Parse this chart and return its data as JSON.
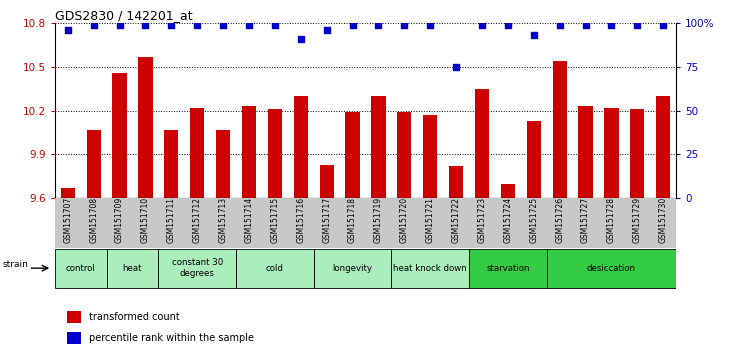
{
  "title": "GDS2830 / 142201_at",
  "samples": [
    "GSM151707",
    "GSM151708",
    "GSM151709",
    "GSM151710",
    "GSM151711",
    "GSM151712",
    "GSM151713",
    "GSM151714",
    "GSM151715",
    "GSM151716",
    "GSM151717",
    "GSM151718",
    "GSM151719",
    "GSM151720",
    "GSM151721",
    "GSM151722",
    "GSM151723",
    "GSM151724",
    "GSM151725",
    "GSM151726",
    "GSM151727",
    "GSM151728",
    "GSM151729",
    "GSM151730"
  ],
  "bar_values": [
    9.67,
    10.07,
    10.46,
    10.57,
    10.07,
    10.22,
    10.07,
    10.23,
    10.21,
    10.3,
    9.83,
    10.19,
    10.3,
    10.19,
    10.17,
    9.82,
    10.35,
    9.7,
    10.13,
    10.54,
    10.23,
    10.22,
    10.21,
    10.3
  ],
  "percentile_values": [
    96,
    99,
    99,
    99,
    99,
    99,
    99,
    99,
    99,
    91,
    96,
    99,
    99,
    99,
    99,
    75,
    99,
    99,
    93,
    99,
    99,
    99,
    99,
    99
  ],
  "bar_color": "#CC0000",
  "dot_color": "#0000CC",
  "ylim_left": [
    9.6,
    10.8
  ],
  "yticks_left": [
    9.6,
    9.9,
    10.2,
    10.5,
    10.8
  ],
  "ylim_right": [
    0,
    100
  ],
  "yticks_right": [
    0,
    25,
    50,
    75,
    100
  ],
  "yticklabels_right": [
    "0",
    "25",
    "50",
    "75",
    "100%"
  ],
  "groups": [
    {
      "label": "control",
      "start": 0,
      "end": 2,
      "color": "#AAEEBB"
    },
    {
      "label": "heat",
      "start": 2,
      "end": 4,
      "color": "#AAEEBB"
    },
    {
      "label": "constant 30\ndegrees",
      "start": 4,
      "end": 7,
      "color": "#AAEEBB"
    },
    {
      "label": "cold",
      "start": 7,
      "end": 10,
      "color": "#AAEEBB"
    },
    {
      "label": "longevity",
      "start": 10,
      "end": 13,
      "color": "#AAEEBB"
    },
    {
      "label": "heat knock down",
      "start": 13,
      "end": 16,
      "color": "#AAEEBB"
    },
    {
      "label": "starvation",
      "start": 16,
      "end": 19,
      "color": "#33CC44"
    },
    {
      "label": "desiccation",
      "start": 19,
      "end": 24,
      "color": "#33CC44"
    }
  ],
  "legend_bar_label": "transformed count",
  "legend_dot_label": "percentile rank within the sample",
  "strain_label": "strain",
  "tick_bg_color": "#C8C8C8",
  "group_border_color": "#000000",
  "fig_bg": "#FFFFFF"
}
